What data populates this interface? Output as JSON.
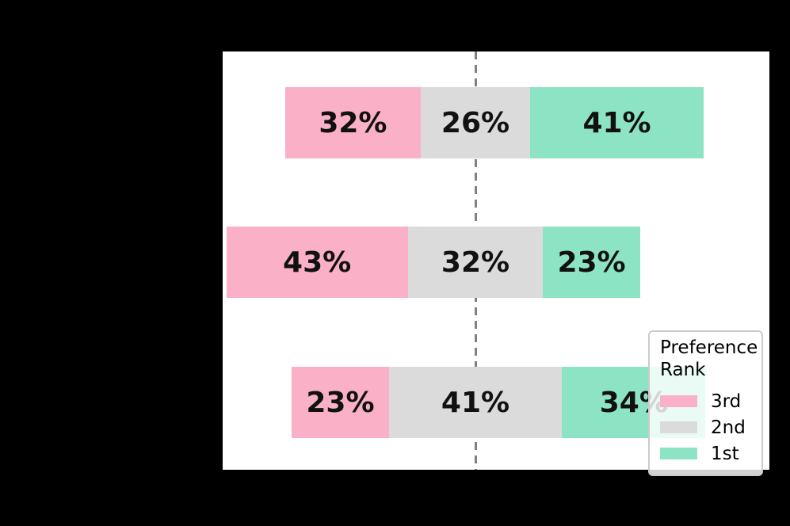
{
  "figure": {
    "background_color": "#000000",
    "plot_background_color": "#ffffff"
  },
  "chart_data": {
    "type": "bar",
    "subtype": "horizontal-diverging-stacked",
    "title": "",
    "xlabel": "",
    "ylabel": "",
    "categories": [
      "",
      "",
      ""
    ],
    "series": [
      {
        "name": "3rd",
        "color": "#FAB0C7",
        "values": [
          32,
          43,
          23
        ]
      },
      {
        "name": "2nd",
        "color": "#DBDBDB",
        "values": [
          26,
          32,
          41
        ]
      },
      {
        "name": "1st",
        "color": "#8DE4C4",
        "values": [
          41,
          23,
          34
        ]
      }
    ],
    "bar_labels": [
      [
        "32%",
        "26%",
        "41%"
      ],
      [
        "43%",
        "32%",
        "23%"
      ],
      [
        "23%",
        "41%",
        "34%"
      ]
    ],
    "label_format": "percent",
    "alignment": "segments centered on middle (2nd) category",
    "reference_line": {
      "style": "dashed",
      "color": "#808080",
      "orientation": "vertical",
      "position": "center of 2nd segment"
    },
    "grid": false,
    "legend": {
      "title_lines": [
        "Preference",
        "Rank"
      ],
      "position": "lower right",
      "entries": [
        {
          "label": "3rd",
          "color": "#FAB0C7"
        },
        {
          "label": "2nd",
          "color": "#DBDBDB"
        },
        {
          "label": "1st",
          "color": "#8DE4C4"
        }
      ]
    }
  }
}
